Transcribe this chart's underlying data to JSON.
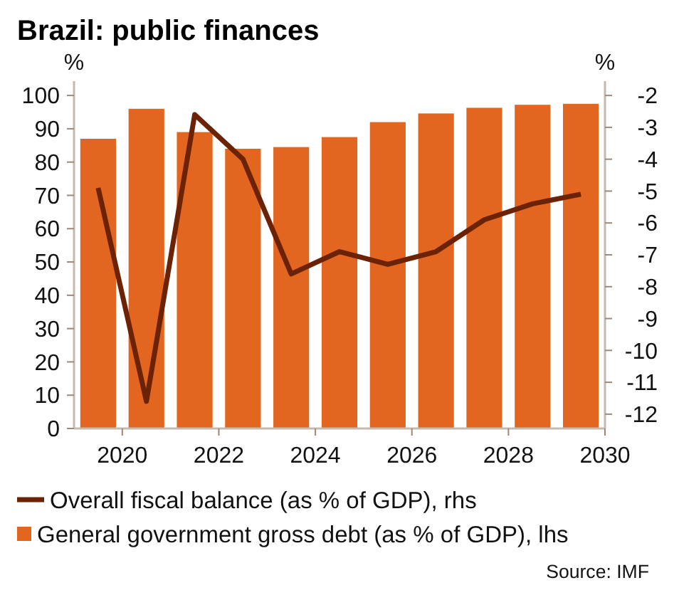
{
  "chart_data": {
    "type": "bar",
    "title": "Brazil: public finances",
    "ylabel": "%",
    "y2label": "%",
    "x": [
      2019.5,
      2020.5,
      2021.5,
      2022.5,
      2023.5,
      2024.5,
      2025.5,
      2026.5,
      2027.5,
      2028.5,
      2029.5
    ],
    "xlim": [
      2019,
      2030
    ],
    "xticks": [
      2020,
      2022,
      2024,
      2026,
      2028,
      2030
    ],
    "ylim": [
      0,
      104.3
    ],
    "yticks": [
      0,
      10,
      20,
      30,
      40,
      50,
      60,
      70,
      80,
      90,
      100
    ],
    "y2lim": [
      -12.45,
      -1.55
    ],
    "y2ticks": [
      -12,
      -11,
      -10,
      -9,
      -8,
      -7,
      -6,
      -5,
      -4,
      -3,
      -2
    ],
    "series": [
      {
        "name": "Overall fiscal balance (as % of GDP), rhs",
        "type": "line",
        "axis": "y2",
        "color": "#6b2205",
        "values": [
          -4.9,
          -11.6,
          -2.6,
          -4,
          -7.6,
          -6.9,
          -7.3,
          -6.9,
          -5.9,
          -5.4,
          -5.1
        ]
      },
      {
        "name": "General government gross debt (as % of GDP), lhs",
        "color": "#e2661f",
        "values": [
          87,
          96,
          89,
          84,
          84.5,
          87.5,
          92,
          94.6,
          96.3,
          97.2,
          97.5
        ]
      }
    ],
    "legend": "bottom",
    "annotations": [
      "Source: IMF"
    ]
  }
}
